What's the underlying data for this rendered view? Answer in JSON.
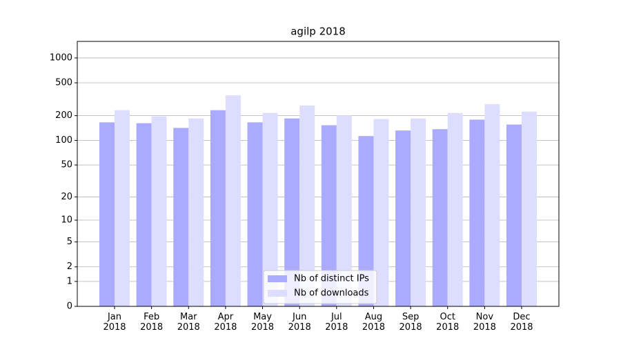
{
  "chart_data": {
    "type": "bar",
    "title": "agilp 2018",
    "yscale": "log1p",
    "categories": [
      "Jan\n2018",
      "Feb\n2018",
      "Mar\n2018",
      "Apr\n2018",
      "May\n2018",
      "Jun\n2018",
      "Jul\n2018",
      "Aug\n2018",
      "Sep\n2018",
      "Oct\n2018",
      "Nov\n2018",
      "Dec\n2018"
    ],
    "series": [
      {
        "name": "Nb of distinct IPs",
        "color": "#aaaaff",
        "values": [
          166,
          162,
          142,
          233,
          166,
          185,
          153,
          113,
          132,
          137,
          179,
          156
        ]
      },
      {
        "name": "Nb of downloads",
        "color": "#ddddff",
        "values": [
          233,
          196,
          185,
          353,
          216,
          266,
          200,
          182,
          185,
          216,
          276,
          224
        ]
      }
    ],
    "ylim": [
      0,
      1584
    ],
    "yticks": [
      0,
      1,
      2,
      5,
      10,
      20,
      50,
      100,
      200,
      500,
      1000
    ],
    "grid": true,
    "legend": "lower center"
  }
}
